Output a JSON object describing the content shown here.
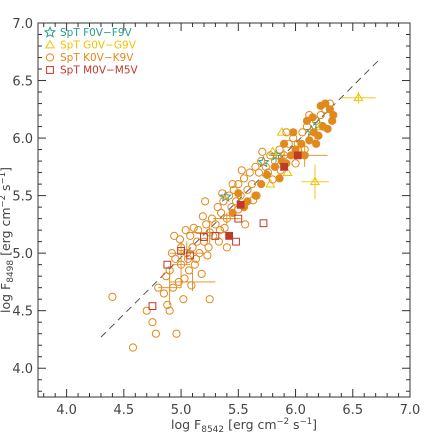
{
  "chart_data": {
    "type": "scatter",
    "xlabel": {
      "pre": "log F",
      "sub": "8542",
      "mid": " [erg cm",
      "sup1": "−2",
      "mid2": " s",
      "sup2": "−1",
      "post": "]"
    },
    "ylabel": {
      "pre": "log F",
      "sub": "8498",
      "mid": " [erg cm",
      "sup1": "−2",
      "mid2": " s",
      "sup2": "−1",
      "post": "]"
    },
    "xlim": [
      3.75,
      7.0
    ],
    "ylim": [
      3.75,
      7.0
    ],
    "x_ticks": [
      "4.0",
      "4.5",
      "5.0",
      "5.5",
      "6.0",
      "6.5",
      "7.0"
    ],
    "y_ticks": [
      "4.0",
      "4.5",
      "5.0",
      "5.5",
      "6.0",
      "6.5",
      "7.0"
    ],
    "x_tick_values": [
      4.0,
      4.5,
      5.0,
      5.5,
      6.0,
      6.5,
      7.0
    ],
    "y_tick_values": [
      4.0,
      4.5,
      5.0,
      5.5,
      6.0,
      6.5,
      7.0
    ],
    "legend_placement": "top-left",
    "reference_line": {
      "style": "dashed",
      "x": [
        4.3,
        6.75
      ],
      "y": [
        4.27,
        6.7
      ]
    },
    "series": [
      {
        "name": "SpT F0V–F9V",
        "marker": "star",
        "color": "#2a9d8f",
        "points": [
          [
            5.39,
            5.49
          ],
          [
            5.72,
            5.79
          ],
          [
            5.83,
            5.85
          ],
          [
            6.14,
            6.06
          ],
          [
            6.2,
            6.12
          ]
        ],
        "errorbars": [
          [
            5.83,
            5.85,
            0.06,
            0.06
          ]
        ]
      },
      {
        "name": "SpT G0V–G9V",
        "marker": "triangle",
        "color": "#f2c200",
        "points": [
          [
            5.88,
            6.05
          ],
          [
            6.03,
            5.9
          ],
          [
            5.93,
            5.7
          ],
          [
            6.17,
            5.62
          ],
          [
            6.55,
            6.35
          ],
          [
            6.22,
            6.1
          ],
          [
            5.8,
            5.88
          ],
          [
            5.78,
            5.6
          ]
        ],
        "errorbars": [
          [
            6.17,
            5.62,
            0.12,
            0.15
          ],
          [
            6.55,
            6.35,
            0.15,
            0.05
          ]
        ]
      },
      {
        "name": "SpT K0V–K9V",
        "marker": "circle",
        "color": "#e08a1e",
        "points": [
          [
            4.4,
            4.62
          ],
          [
            4.58,
            4.18
          ],
          [
            4.7,
            4.5
          ],
          [
            4.75,
            4.4
          ],
          [
            4.78,
            4.3
          ],
          [
            4.8,
            4.7
          ],
          [
            4.85,
            4.65
          ],
          [
            4.87,
            4.8
          ],
          [
            4.9,
            4.5
          ],
          [
            4.9,
            4.85
          ],
          [
            4.92,
            5.0
          ],
          [
            4.94,
            5.15
          ],
          [
            4.95,
            4.95
          ],
          [
            4.96,
            4.3
          ],
          [
            4.98,
            4.75
          ],
          [
            5.0,
            4.9
          ],
          [
            5.0,
            5.05
          ],
          [
            5.02,
            4.6
          ],
          [
            5.04,
            5.2
          ],
          [
            5.05,
            5.0
          ],
          [
            5.07,
            4.85
          ],
          [
            5.08,
            5.15
          ],
          [
            5.1,
            5.05
          ],
          [
            5.12,
            4.9
          ],
          [
            5.14,
            5.1
          ],
          [
            5.15,
            5.2
          ],
          [
            5.16,
            5.0
          ],
          [
            5.18,
            4.82
          ],
          [
            5.2,
            5.1
          ],
          [
            5.22,
            5.25
          ],
          [
            5.24,
            5.05
          ],
          [
            5.25,
            5.18
          ],
          [
            5.27,
            5.3
          ],
          [
            5.28,
            5.15
          ],
          [
            5.3,
            5.25
          ],
          [
            5.32,
            5.4
          ],
          [
            5.34,
            5.2
          ],
          [
            5.35,
            5.35
          ],
          [
            5.37,
            5.45
          ],
          [
            5.4,
            5.3
          ],
          [
            5.42,
            5.5
          ],
          [
            5.44,
            5.4
          ],
          [
            5.46,
            5.55
          ],
          [
            5.48,
            5.45
          ],
          [
            5.5,
            5.6
          ],
          [
            5.52,
            5.5
          ],
          [
            5.55,
            5.65
          ],
          [
            5.58,
            5.55
          ],
          [
            5.6,
            5.7
          ],
          [
            5.62,
            5.6
          ],
          [
            5.65,
            5.75
          ],
          [
            5.68,
            5.7
          ],
          [
            5.7,
            5.8
          ],
          [
            5.74,
            5.75
          ],
          [
            5.78,
            5.85
          ],
          [
            5.82,
            5.8
          ],
          [
            5.86,
            5.9
          ],
          [
            5.9,
            5.85
          ],
          [
            5.94,
            5.95
          ],
          [
            5.98,
            6.0
          ],
          [
            6.02,
            5.95
          ],
          [
            6.06,
            6.05
          ],
          [
            6.1,
            6.1
          ],
          [
            6.14,
            6.0
          ],
          [
            6.18,
            6.15
          ],
          [
            6.22,
            6.2
          ],
          [
            6.26,
            6.25
          ],
          [
            6.3,
            6.3
          ],
          [
            5.25,
            4.6
          ],
          [
            5.4,
            5.05
          ],
          [
            5.56,
            5.25
          ],
          [
            5.76,
            5.7
          ],
          [
            4.88,
            4.55
          ],
          [
            5.06,
            4.95
          ],
          [
            5.33,
            5.1
          ],
          [
            5.11,
            5.22
          ],
          [
            5.19,
            5.32
          ],
          [
            5.45,
            5.6
          ],
          [
            5.66,
            5.5
          ],
          [
            5.87,
            5.72
          ],
          [
            6.0,
            5.78
          ],
          [
            6.08,
            5.9
          ],
          [
            4.93,
            4.7
          ],
          [
            5.03,
            4.78
          ],
          [
            5.13,
            4.95
          ],
          [
            5.23,
            4.98
          ],
          [
            5.38,
            5.22
          ],
          [
            5.5,
            5.38
          ],
          [
            5.63,
            5.46
          ],
          [
            5.8,
            5.64
          ],
          [
            4.99,
            5.12
          ],
          [
            5.09,
            4.72
          ],
          [
            5.21,
            5.45
          ],
          [
            5.36,
            5.52
          ],
          [
            5.53,
            5.72
          ],
          [
            5.71,
            5.88
          ],
          [
            5.92,
            6.05
          ],
          [
            6.12,
            6.2
          ]
        ],
        "filled_points": [
          [
            5.45,
            5.35
          ],
          [
            5.58,
            5.45
          ],
          [
            5.7,
            5.6
          ],
          [
            5.75,
            5.68
          ],
          [
            5.82,
            5.75
          ],
          [
            5.88,
            5.8
          ],
          [
            5.92,
            5.78
          ],
          [
            5.96,
            5.85
          ],
          [
            6.0,
            5.9
          ],
          [
            6.05,
            5.95
          ],
          [
            6.08,
            5.85
          ],
          [
            6.12,
            5.98
          ],
          [
            6.16,
            6.05
          ],
          [
            6.2,
            6.02
          ],
          [
            6.24,
            6.1
          ],
          [
            6.28,
            6.08
          ],
          [
            6.32,
            6.15
          ],
          [
            6.3,
            6.25
          ],
          [
            6.22,
            6.28
          ],
          [
            6.18,
            5.95
          ],
          [
            6.1,
            6.15
          ],
          [
            5.98,
            6.05
          ],
          [
            5.9,
            5.95
          ],
          [
            5.65,
            5.5
          ],
          [
            5.55,
            5.4
          ],
          [
            5.5,
            5.52
          ],
          [
            6.26,
            6.3
          ],
          [
            6.33,
            6.2
          ],
          [
            6.15,
            6.18
          ],
          [
            5.86,
            5.65
          ]
        ],
        "errorbars": [
          [
            4.9,
            4.7,
            0.1,
            0.15
          ],
          [
            5.05,
            5.0,
            0.15,
            0.1
          ],
          [
            5.1,
            4.75,
            0.2,
            0.08
          ],
          [
            5.0,
            4.9,
            0.08,
            0.2
          ],
          [
            5.25,
            5.18,
            0.2,
            0.1
          ],
          [
            5.4,
            5.3,
            0.12,
            0.05
          ],
          [
            6.08,
            5.85,
            0.2,
            0.1
          ],
          [
            5.9,
            5.85,
            0.1,
            0.05
          ]
        ]
      },
      {
        "name": "SpT M0V–M5V",
        "marker": "square",
        "color": "#c0392b",
        "points": [
          [
            4.75,
            4.54
          ],
          [
            4.88,
            4.9
          ],
          [
            5.0,
            5.02
          ],
          [
            5.2,
            5.14
          ],
          [
            5.48,
            5.1
          ],
          [
            5.5,
            5.3
          ],
          [
            5.72,
            5.26
          ],
          [
            5.3,
            5.15
          ],
          [
            5.08,
            4.98
          ]
        ],
        "filled_points": [
          [
            5.42,
            5.15
          ],
          [
            5.52,
            5.42
          ],
          [
            5.9,
            5.75
          ],
          [
            6.02,
            5.85
          ]
        ],
        "errorbars": []
      }
    ]
  },
  "legend": {
    "items": [
      {
        "label": "SpT F0V−F9V",
        "color": "#2a9d8f",
        "marker": "star"
      },
      {
        "label": "SpT G0V−G9V",
        "color": "#f2c200",
        "marker": "triangle"
      },
      {
        "label": "SpT K0V−K9V",
        "color": "#e08a1e",
        "marker": "circle"
      },
      {
        "label": "SpT M0V−M5V",
        "color": "#c0392b",
        "marker": "square"
      }
    ]
  },
  "colors": {
    "axis": "#333333",
    "text": "#444444",
    "refline": "#555555"
  }
}
